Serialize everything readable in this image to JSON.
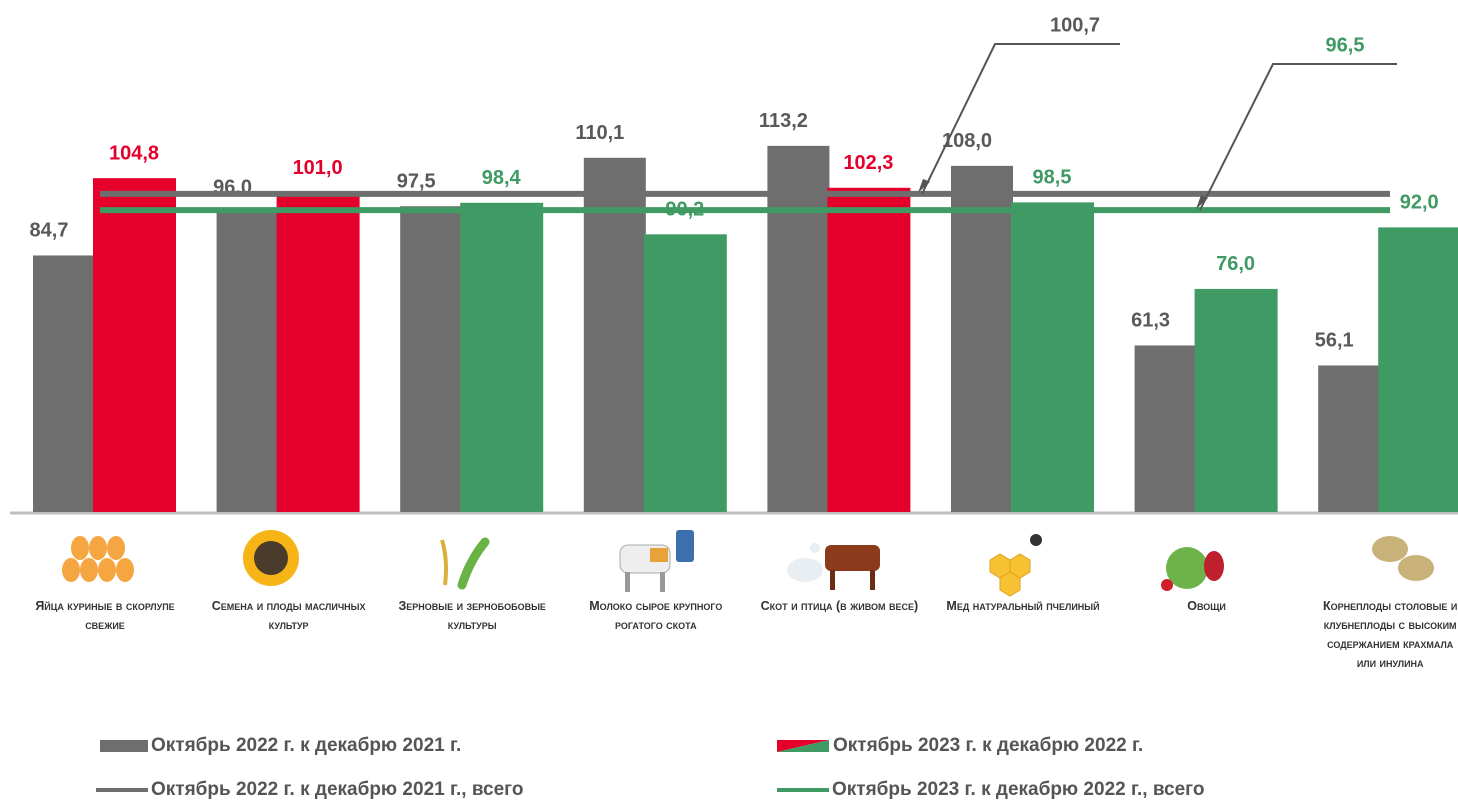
{
  "chart_data": {
    "type": "bar",
    "categories": [
      "Яйца куриные в скорлупе свежие",
      "Семена и плоды масличных культур",
      "Зерновые и зернобобовые культуры",
      "Молоко сырое крупного рогатого скота",
      "Скот и птица (в живом весе)",
      "Мед натуральный пчелиный",
      "Овощи",
      "Корнеплоды столовые и клубнеплоды с высоким содержанием крахмала или инулина"
    ],
    "series": [
      {
        "name": "Октябрь 2022 г. к декабрю 2021 г.",
        "color": "#6e6e6e",
        "values": [
          84.7,
          96.0,
          97.5,
          110.1,
          113.2,
          108.0,
          61.3,
          56.1
        ],
        "value_labels": [
          "84,7",
          "96,0",
          "97,5",
          "110,1",
          "113,2",
          "108,0",
          "61,3",
          "56,1"
        ]
      },
      {
        "name": "Октябрь 2023 г. к декабрю 2022 г.",
        "colors": [
          "#e4002b",
          "#e4002b",
          "#3f9a63",
          "#3f9a63",
          "#e4002b",
          "#3f9a63",
          "#3f9a63",
          "#3f9a63"
        ],
        "values": [
          104.8,
          101.0,
          98.4,
          90.2,
          102.3,
          98.5,
          76.0,
          92.0
        ],
        "value_labels": [
          "104,8",
          "101,0",
          "98,4",
          "90,2",
          "102,3",
          "98,5",
          "76,0",
          "92,0"
        ]
      }
    ],
    "reference_lines": [
      {
        "name": "Октябрь 2022 г. к декабрю 2021 г., всего",
        "color": "#6e6e6e",
        "value": 100.7,
        "value_label": "100,7"
      },
      {
        "name": "Октябрь 2023 г. к декабрю 2022 г., всего",
        "color": "#3f9a63",
        "value": 96.5,
        "value_label": "96,5"
      }
    ],
    "ylim": [
      18,
      122
    ]
  }
}
